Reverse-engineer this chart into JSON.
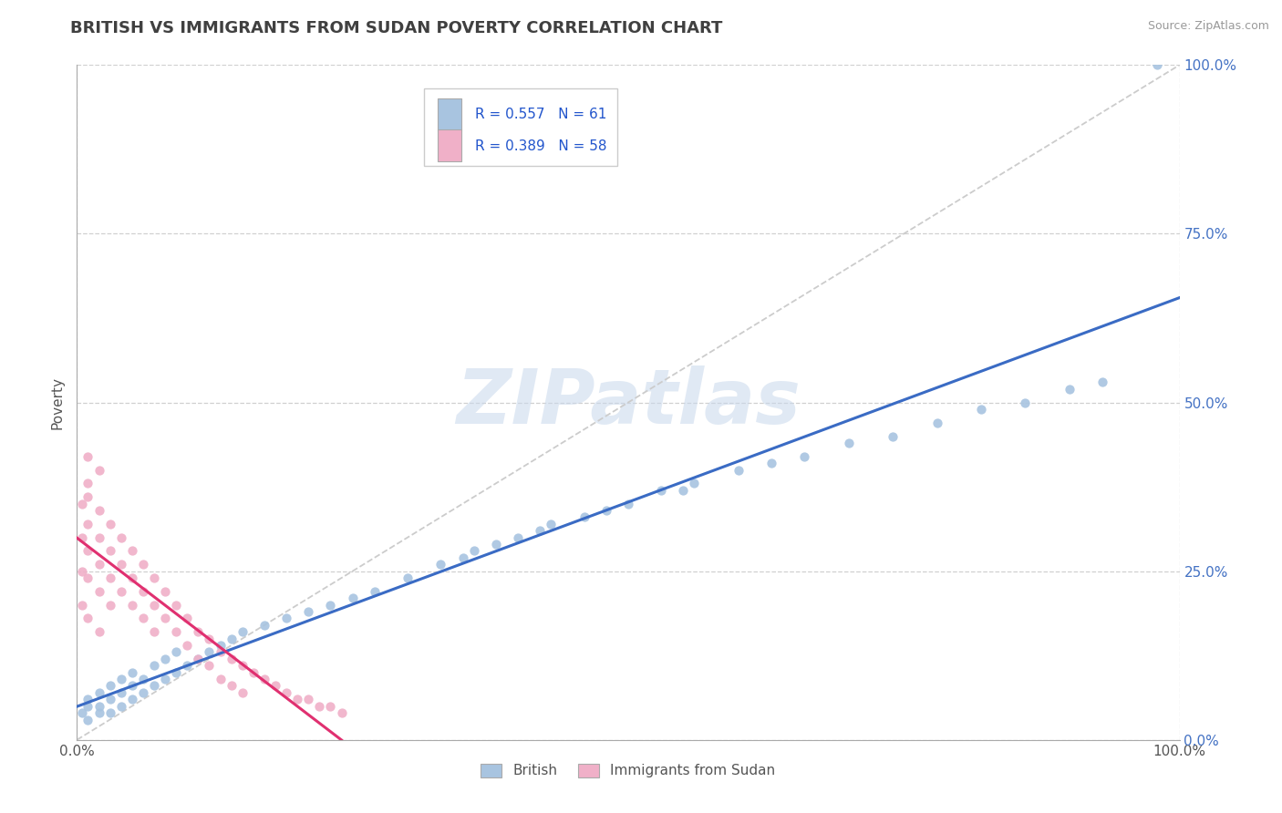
{
  "title": "BRITISH VS IMMIGRANTS FROM SUDAN POVERTY CORRELATION CHART",
  "source_text": "Source: ZipAtlas.com",
  "ylabel": "Poverty",
  "color_british": "#a8c4e0",
  "color_sudan": "#f0b0c8",
  "line_color_british": "#3a6bc4",
  "line_color_sudan": "#e03070",
  "diag_color": "#cccccc",
  "title_color": "#404040",
  "title_fontsize": 13,
  "watermark_text": "ZIPatlas",
  "legend_r1": "R = 0.557",
  "legend_n1": "N = 61",
  "legend_r2": "R = 0.389",
  "legend_n2": "N = 58",
  "legend_label1": "British",
  "legend_label2": "Immigrants from Sudan",
  "ytick_color": "#4472c4",
  "ytick_values": [
    0.0,
    0.25,
    0.5,
    0.75,
    1.0
  ],
  "ytick_labels": [
    "0.0%",
    "25.0%",
    "50.0%",
    "75.0%",
    "100.0%"
  ],
  "xtick_values": [
    0.0,
    1.0
  ],
  "xtick_labels": [
    "0.0%",
    "100.0%"
  ],
  "british_x": [
    0.005,
    0.01,
    0.01,
    0.01,
    0.02,
    0.02,
    0.02,
    0.03,
    0.03,
    0.03,
    0.04,
    0.04,
    0.04,
    0.05,
    0.05,
    0.05,
    0.06,
    0.06,
    0.07,
    0.07,
    0.08,
    0.08,
    0.09,
    0.09,
    0.1,
    0.11,
    0.12,
    0.13,
    0.14,
    0.15,
    0.17,
    0.19,
    0.21,
    0.23,
    0.25,
    0.27,
    0.3,
    0.33,
    0.36,
    0.38,
    0.4,
    0.43,
    0.46,
    0.5,
    0.53,
    0.56,
    0.6,
    0.63,
    0.66,
    0.7,
    0.74,
    0.78,
    0.82,
    0.86,
    0.9,
    0.93,
    0.35,
    0.42,
    0.48,
    0.55,
    0.98
  ],
  "british_y": [
    0.04,
    0.03,
    0.05,
    0.06,
    0.04,
    0.05,
    0.07,
    0.04,
    0.06,
    0.08,
    0.05,
    0.07,
    0.09,
    0.06,
    0.08,
    0.1,
    0.07,
    0.09,
    0.08,
    0.11,
    0.09,
    0.12,
    0.1,
    0.13,
    0.11,
    0.12,
    0.13,
    0.14,
    0.15,
    0.16,
    0.17,
    0.18,
    0.19,
    0.2,
    0.21,
    0.22,
    0.24,
    0.26,
    0.28,
    0.29,
    0.3,
    0.32,
    0.33,
    0.35,
    0.37,
    0.38,
    0.4,
    0.41,
    0.42,
    0.44,
    0.45,
    0.47,
    0.49,
    0.5,
    0.52,
    0.53,
    0.27,
    0.31,
    0.34,
    0.37,
    1.0
  ],
  "sudan_x": [
    0.005,
    0.005,
    0.005,
    0.005,
    0.01,
    0.01,
    0.01,
    0.01,
    0.01,
    0.01,
    0.01,
    0.02,
    0.02,
    0.02,
    0.02,
    0.02,
    0.02,
    0.03,
    0.03,
    0.03,
    0.03,
    0.04,
    0.04,
    0.04,
    0.05,
    0.05,
    0.05,
    0.06,
    0.06,
    0.06,
    0.07,
    0.07,
    0.07,
    0.08,
    0.08,
    0.09,
    0.09,
    0.1,
    0.1,
    0.11,
    0.11,
    0.12,
    0.12,
    0.13,
    0.13,
    0.14,
    0.14,
    0.15,
    0.15,
    0.16,
    0.17,
    0.18,
    0.19,
    0.2,
    0.21,
    0.22,
    0.23,
    0.24
  ],
  "sudan_y": [
    0.35,
    0.25,
    0.3,
    0.2,
    0.36,
    0.32,
    0.28,
    0.24,
    0.38,
    0.42,
    0.18,
    0.34,
    0.3,
    0.26,
    0.22,
    0.4,
    0.16,
    0.32,
    0.28,
    0.24,
    0.2,
    0.3,
    0.26,
    0.22,
    0.28,
    0.24,
    0.2,
    0.26,
    0.22,
    0.18,
    0.24,
    0.2,
    0.16,
    0.22,
    0.18,
    0.2,
    0.16,
    0.18,
    0.14,
    0.16,
    0.12,
    0.15,
    0.11,
    0.13,
    0.09,
    0.12,
    0.08,
    0.11,
    0.07,
    0.1,
    0.09,
    0.08,
    0.07,
    0.06,
    0.06,
    0.05,
    0.05,
    0.04
  ]
}
